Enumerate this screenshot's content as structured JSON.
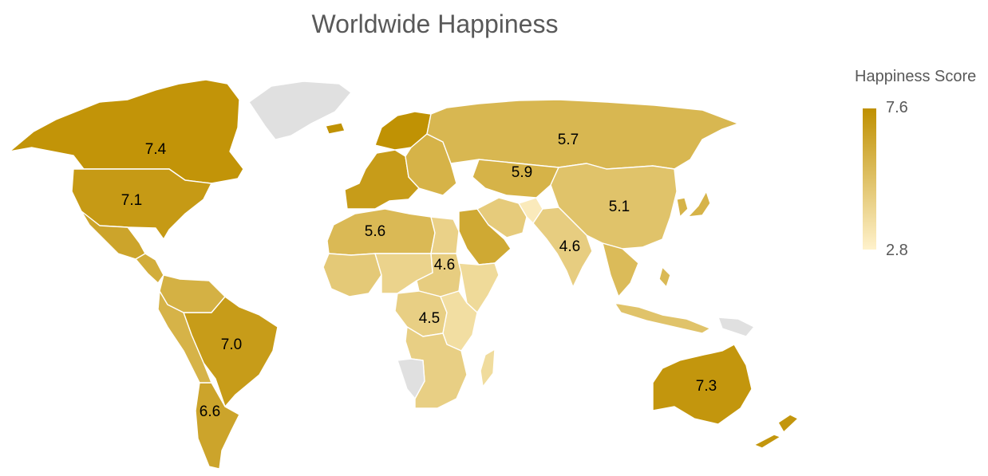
{
  "title": "Worldwide Happiness",
  "legend": {
    "title": "Happiness Score",
    "max_label": "7.6",
    "min_label": "2.8",
    "min": 2.8,
    "max": 7.6,
    "color_low": "#fff2cc",
    "color_high": "#bf9000"
  },
  "colors": {
    "no_data": "#e0e0e0",
    "title_text": "#595959",
    "label_text": "#000000"
  },
  "regions": [
    {
      "name": "Canada",
      "score": 7.4,
      "label": "7.4"
    },
    {
      "name": "United States",
      "score": 7.1,
      "label": "7.1"
    },
    {
      "name": "Mexico",
      "score": 6.6
    },
    {
      "name": "Central America",
      "score": 6.2
    },
    {
      "name": "Brazil",
      "score": 7.0,
      "label": "7.0"
    },
    {
      "name": "Argentina",
      "score": 6.6,
      "label": "6.6"
    },
    {
      "name": "Andes",
      "score": 5.9
    },
    {
      "name": "Colombia Venezuela",
      "score": 6.0
    },
    {
      "name": "Greenland",
      "score": null
    },
    {
      "name": "Iceland",
      "score": 7.5
    },
    {
      "name": "Western Europe",
      "score": 7.0
    },
    {
      "name": "Scandinavia",
      "score": 7.5
    },
    {
      "name": "Eastern Europe",
      "score": 5.9
    },
    {
      "name": "Russia",
      "score": 5.7,
      "label": "5.7"
    },
    {
      "name": "Central Asia",
      "score": 5.9,
      "label": "5.9"
    },
    {
      "name": "China",
      "score": 5.1,
      "label": "5.1"
    },
    {
      "name": "Japan",
      "score": 5.9
    },
    {
      "name": "North Africa",
      "score": 5.6,
      "label": "5.6"
    },
    {
      "name": "Egypt",
      "score": 4.4
    },
    {
      "name": "Saudi Arabia",
      "score": 6.4
    },
    {
      "name": "Iran",
      "score": 4.7
    },
    {
      "name": "Afghanistan",
      "score": 3.2
    },
    {
      "name": "India",
      "score": 4.6,
      "label": "4.6"
    },
    {
      "name": "Southeast Asia",
      "score": 5.5
    },
    {
      "name": "Indonesia",
      "score": 5.1
    },
    {
      "name": "West Africa",
      "score": 4.8
    },
    {
      "name": "Central Africa",
      "score": 4.6,
      "label": "4.6"
    },
    {
      "name": "Sahel",
      "score": 4.3
    },
    {
      "name": "Horn of Africa",
      "score": 4.0
    },
    {
      "name": "Congo region",
      "score": 4.5,
      "label": "4.5"
    },
    {
      "name": "East Africa",
      "score": 3.8
    },
    {
      "name": "Southern Africa",
      "score": 4.5
    },
    {
      "name": "Namibia",
      "score": null
    },
    {
      "name": "Madagascar",
      "score": 3.9
    },
    {
      "name": "Australia",
      "score": 7.3,
      "label": "7.3"
    },
    {
      "name": "New Zealand",
      "score": 7.3
    },
    {
      "name": "Papua New Guinea",
      "score": null
    },
    {
      "name": "Philippines",
      "score": 5.6
    },
    {
      "name": "Korea",
      "score": 5.9
    }
  ]
}
